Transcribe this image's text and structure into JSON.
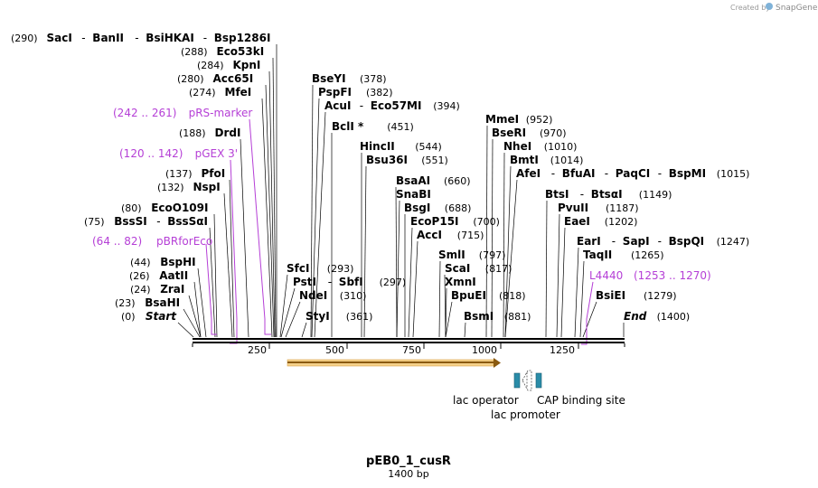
{
  "credit": {
    "prefix": "Created by",
    "brand": "SnapGene"
  },
  "plasmid": {
    "name": "pEB0_1_cusR",
    "length_label": "1400 bp"
  },
  "axis": {
    "ticks": [
      "250",
      "500",
      "750",
      "1000",
      "1250"
    ]
  },
  "features": {
    "lac_operator": "lac operator",
    "cap_site": "CAP binding site",
    "lac_promoter": "lac promoter"
  },
  "labels": [
    {
      "pos": "(290)",
      "parts": [
        "SacI",
        "BanII",
        "BsiHKAI",
        "Bsp1286I"
      ]
    },
    {
      "pos": "(288)",
      "parts": [
        "Eco53kI"
      ]
    },
    {
      "pos": "(284)",
      "parts": [
        "KpnI"
      ]
    },
    {
      "pos": "(280)",
      "parts": [
        "Acc65I"
      ]
    },
    {
      "pos": "(274)",
      "parts": [
        "MfeI"
      ]
    },
    {
      "pos": "(242 .. 261)",
      "parts": [
        "pRS-marker"
      ],
      "primer": true
    },
    {
      "pos": "(188)",
      "parts": [
        "DrdI"
      ]
    },
    {
      "pos": "(120 .. 142)",
      "parts": [
        "pGEX 3'"
      ],
      "primer": true
    },
    {
      "pos": "(137)",
      "parts": [
        "PfoI"
      ]
    },
    {
      "pos": "(132)",
      "parts": [
        "NspI"
      ]
    },
    {
      "pos": "(80)",
      "parts": [
        "EcoO109I"
      ]
    },
    {
      "pos": "(75)",
      "parts": [
        "BssSI",
        "BssSαI"
      ]
    },
    {
      "pos": "(64 .. 82)",
      "parts": [
        "pBRforEco"
      ],
      "primer": true
    },
    {
      "pos": "(44)",
      "parts": [
        "BspHI"
      ]
    },
    {
      "pos": "(26)",
      "parts": [
        "AatII"
      ]
    },
    {
      "pos": "(24)",
      "parts": [
        "ZraI"
      ]
    },
    {
      "pos": "(23)",
      "parts": [
        "BsaHI"
      ]
    },
    {
      "pos": "(0)",
      "parts": [
        "Start"
      ],
      "italic": true
    },
    {
      "pos": "(378)",
      "parts": [
        "BseYI"
      ]
    },
    {
      "pos": "(382)",
      "parts": [
        "PspFI"
      ]
    },
    {
      "pos": "(394)",
      "parts": [
        "AcuI",
        "Eco57MI"
      ]
    },
    {
      "pos": "(451)",
      "parts": [
        "BclI *"
      ]
    },
    {
      "pos": "(544)",
      "parts": [
        "HincII"
      ]
    },
    {
      "pos": "(551)",
      "parts": [
        "Bsu36I"
      ]
    },
    {
      "pos": "(660)",
      "parts": [
        "BsaAI"
      ]
    },
    {
      "pos": "",
      "parts": [
        "SnaBI"
      ]
    },
    {
      "pos": "(688)",
      "parts": [
        "BsgI"
      ]
    },
    {
      "pos": "(700)",
      "parts": [
        "EcoP15I"
      ]
    },
    {
      "pos": "(715)",
      "parts": [
        "AccI"
      ]
    },
    {
      "pos": "(293)",
      "parts": [
        "SfcI"
      ]
    },
    {
      "pos": "(297)",
      "parts": [
        "PstI",
        "SbfI"
      ]
    },
    {
      "pos": "(310)",
      "parts": [
        "NdeI"
      ]
    },
    {
      "pos": "(361)",
      "parts": [
        "StyI"
      ]
    },
    {
      "pos": "(797)",
      "parts": [
        "SmlI"
      ]
    },
    {
      "pos": "(817)",
      "parts": [
        "ScaI"
      ]
    },
    {
      "pos": "",
      "parts": [
        "XmnI"
      ]
    },
    {
      "pos": "(818)",
      "parts": [
        "BpuEI"
      ]
    },
    {
      "pos": "(881)",
      "parts": [
        "BsmI"
      ]
    },
    {
      "pos": "(952)",
      "parts": [
        "MmeI"
      ]
    },
    {
      "pos": "(970)",
      "parts": [
        "BseRI"
      ]
    },
    {
      "pos": "(1010)",
      "parts": [
        "NheI"
      ]
    },
    {
      "pos": "(1014)",
      "parts": [
        "BmtI"
      ]
    },
    {
      "pos": "(1015)",
      "parts": [
        "AfeI",
        "BfuAI",
        "PaqCI",
        "BspMI"
      ]
    },
    {
      "pos": "(1149)",
      "parts": [
        "BtsI",
        "BtsαI"
      ]
    },
    {
      "pos": "(1187)",
      "parts": [
        "PvuII"
      ]
    },
    {
      "pos": "(1202)",
      "parts": [
        "EaeI"
      ]
    },
    {
      "pos": "(1247)",
      "parts": [
        "EarI",
        "SapI",
        "BspQI"
      ]
    },
    {
      "pos": "(1265)",
      "parts": [
        "TaqII"
      ]
    },
    {
      "pos": "(1253 .. 1270)",
      "parts": [
        "L4440"
      ],
      "primer": true
    },
    {
      "pos": "(1279)",
      "parts": [
        "BsiEI"
      ]
    },
    {
      "pos": "(1400)",
      "parts": [
        "End"
      ],
      "italic": true
    }
  ]
}
